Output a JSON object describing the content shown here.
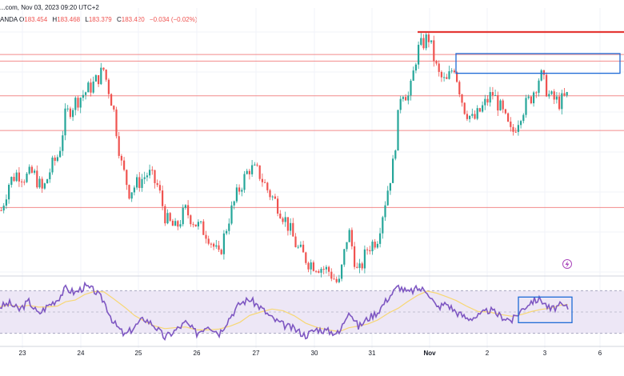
{
  "header": {
    "line1": "...com, Nov 03, 2023 09:20 UTC+2",
    "line2_prefix": "ANDA",
    "ohlc": [
      {
        "k": "O",
        "v": "183.454"
      },
      {
        "k": "H",
        "v": "183.468"
      },
      {
        "k": "L",
        "v": "183.379"
      },
      {
        "k": "C",
        "v": "183.420"
      }
    ],
    "change": "−0.034 (−0.02%)"
  },
  "colors": {
    "up": "#26a69a",
    "down": "#ef5350",
    "level_line": "#f28b8b",
    "resistance": "#e53935",
    "zone": "#1e6bd6",
    "rsi_line": "#7e57c2",
    "rsi_ma": "#f7d774",
    "rsi_band": "#ede7f6",
    "grid": "#f0f3fa"
  },
  "icons": {
    "flash": "lightning-icon"
  },
  "chart_data": {
    "type": "candlestick",
    "x_ticks": [
      "23",
      "24",
      "25",
      "26",
      "27",
      "30",
      "31",
      "Nov",
      "2",
      "3",
      "6"
    ],
    "price_levels": [
      183.35,
      182.53,
      183.72,
      184.09,
      184.16
    ],
    "price_ylim": [
      181.8,
      184.4
    ],
    "resistance_level": 184.4,
    "resistance_zone": {
      "start": "Nov 1 05:00",
      "end": "6",
      "top": 184.17,
      "bottom": 183.96
    },
    "series_path": [
      {
        "t": 0,
        "p": 182.5
      },
      {
        "t": 10,
        "p": 182.8
      },
      {
        "t": 20,
        "p": 182.9
      },
      {
        "t": 30,
        "p": 182.85
      },
      {
        "t": 40,
        "p": 182.9
      },
      {
        "t": 52,
        "p": 182.7
      },
      {
        "t": 62,
        "p": 182.95
      },
      {
        "t": 72,
        "p": 183.1
      },
      {
        "t": 80,
        "p": 183.5
      },
      {
        "t": 92,
        "p": 183.65
      },
      {
        "t": 104,
        "p": 183.75
      },
      {
        "t": 116,
        "p": 183.85
      },
      {
        "t": 128,
        "p": 184.0
      },
      {
        "t": 140,
        "p": 183.6
      },
      {
        "t": 150,
        "p": 183.0
      },
      {
        "t": 160,
        "p": 182.7
      },
      {
        "t": 172,
        "p": 182.8
      },
      {
        "t": 184,
        "p": 182.9
      },
      {
        "t": 196,
        "p": 182.75
      },
      {
        "t": 206,
        "p": 182.4
      },
      {
        "t": 218,
        "p": 182.3
      },
      {
        "t": 230,
        "p": 182.5
      },
      {
        "t": 244,
        "p": 182.35
      },
      {
        "t": 258,
        "p": 182.25
      },
      {
        "t": 272,
        "p": 182.0
      },
      {
        "t": 284,
        "p": 182.4
      },
      {
        "t": 296,
        "p": 182.7
      },
      {
        "t": 310,
        "p": 182.95
      },
      {
        "t": 322,
        "p": 182.9
      },
      {
        "t": 334,
        "p": 182.7
      },
      {
        "t": 346,
        "p": 182.55
      },
      {
        "t": 358,
        "p": 182.35
      },
      {
        "t": 370,
        "p": 182.1
      },
      {
        "t": 384,
        "p": 181.95
      },
      {
        "t": 398,
        "p": 181.9
      },
      {
        "t": 410,
        "p": 181.85
      },
      {
        "t": 422,
        "p": 181.7
      },
      {
        "t": 434,
        "p": 182.3
      },
      {
        "t": 446,
        "p": 181.8
      },
      {
        "t": 458,
        "p": 182.1
      },
      {
        "t": 470,
        "p": 182.2
      },
      {
        "t": 480,
        "p": 182.6
      },
      {
        "t": 490,
        "p": 183.0
      },
      {
        "t": 500,
        "p": 183.8
      },
      {
        "t": 510,
        "p": 183.7
      },
      {
        "t": 520,
        "p": 184.2
      },
      {
        "t": 534,
        "p": 184.35
      },
      {
        "t": 546,
        "p": 183.95
      },
      {
        "t": 556,
        "p": 183.85
      },
      {
        "t": 566,
        "p": 184.05
      },
      {
        "t": 578,
        "p": 183.6
      },
      {
        "t": 590,
        "p": 183.45
      },
      {
        "t": 602,
        "p": 183.6
      },
      {
        "t": 614,
        "p": 183.75
      },
      {
        "t": 626,
        "p": 183.55
      },
      {
        "t": 638,
        "p": 183.3
      },
      {
        "t": 650,
        "p": 183.55
      },
      {
        "t": 662,
        "p": 183.7
      },
      {
        "t": 674,
        "p": 183.95
      },
      {
        "t": 686,
        "p": 183.7
      },
      {
        "t": 698,
        "p": 183.65
      },
      {
        "t": 708,
        "p": 183.72
      }
    ],
    "rsi_path": [
      {
        "t": 0,
        "v": 55
      },
      {
        "t": 12,
        "v": 58
      },
      {
        "t": 24,
        "v": 52
      },
      {
        "t": 36,
        "v": 60
      },
      {
        "t": 48,
        "v": 48
      },
      {
        "t": 60,
        "v": 56
      },
      {
        "t": 72,
        "v": 62
      },
      {
        "t": 82,
        "v": 72
      },
      {
        "t": 94,
        "v": 68
      },
      {
        "t": 106,
        "v": 74
      },
      {
        "t": 118,
        "v": 70
      },
      {
        "t": 130,
        "v": 60
      },
      {
        "t": 142,
        "v": 40
      },
      {
        "t": 156,
        "v": 28
      },
      {
        "t": 168,
        "v": 36
      },
      {
        "t": 180,
        "v": 44
      },
      {
        "t": 192,
        "v": 38
      },
      {
        "t": 206,
        "v": 26
      },
      {
        "t": 218,
        "v": 32
      },
      {
        "t": 232,
        "v": 40
      },
      {
        "t": 246,
        "v": 30
      },
      {
        "t": 260,
        "v": 38
      },
      {
        "t": 274,
        "v": 30
      },
      {
        "t": 288,
        "v": 46
      },
      {
        "t": 300,
        "v": 58
      },
      {
        "t": 312,
        "v": 62
      },
      {
        "t": 326,
        "v": 54
      },
      {
        "t": 340,
        "v": 44
      },
      {
        "t": 354,
        "v": 38
      },
      {
        "t": 368,
        "v": 34
      },
      {
        "t": 382,
        "v": 28
      },
      {
        "t": 396,
        "v": 34
      },
      {
        "t": 410,
        "v": 32
      },
      {
        "t": 424,
        "v": 30
      },
      {
        "t": 436,
        "v": 52
      },
      {
        "t": 448,
        "v": 36
      },
      {
        "t": 460,
        "v": 44
      },
      {
        "t": 472,
        "v": 50
      },
      {
        "t": 486,
        "v": 64
      },
      {
        "t": 498,
        "v": 74
      },
      {
        "t": 510,
        "v": 68
      },
      {
        "t": 522,
        "v": 72
      },
      {
        "t": 534,
        "v": 70
      },
      {
        "t": 546,
        "v": 54
      },
      {
        "t": 558,
        "v": 58
      },
      {
        "t": 570,
        "v": 50
      },
      {
        "t": 584,
        "v": 44
      },
      {
        "t": 598,
        "v": 46
      },
      {
        "t": 612,
        "v": 52
      },
      {
        "t": 626,
        "v": 46
      },
      {
        "t": 640,
        "v": 42
      },
      {
        "t": 652,
        "v": 52
      },
      {
        "t": 664,
        "v": 60
      },
      {
        "t": 676,
        "v": 62
      },
      {
        "t": 688,
        "v": 52
      },
      {
        "t": 700,
        "v": 56
      },
      {
        "t": 710,
        "v": 54
      }
    ],
    "rsi_box": {
      "start": "Nov 2 18:00",
      "end": "Nov 3 14:00",
      "top": 64,
      "bottom": 40
    },
    "rsi_ylim": [
      20,
      80
    ],
    "rsi_band": [
      30,
      70
    ]
  }
}
